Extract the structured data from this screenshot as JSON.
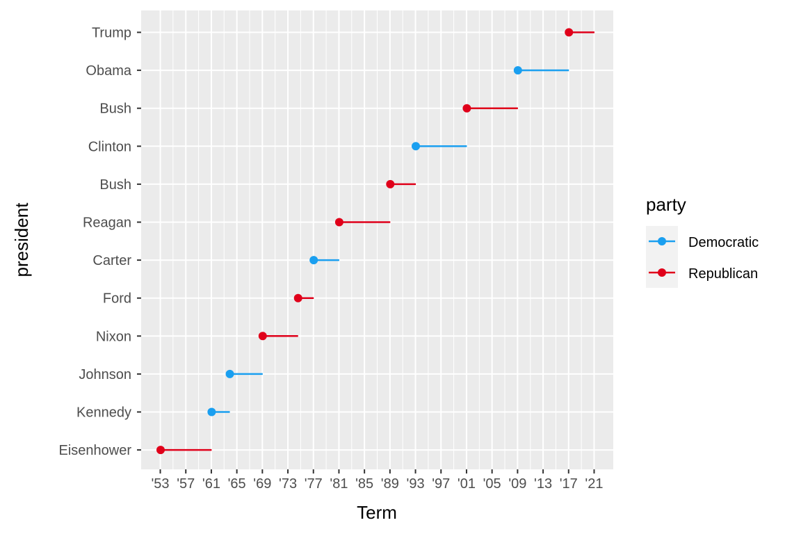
{
  "chart_data": {
    "type": "dumbbell",
    "title": "",
    "xlabel": "Term",
    "ylabel": "president",
    "x_tick_values": [
      1953,
      1957,
      1961,
      1965,
      1969,
      1973,
      1977,
      1981,
      1985,
      1989,
      1993,
      1997,
      2001,
      2005,
      2009,
      2013,
      2017,
      2021
    ],
    "x_tick_labels": [
      "'53",
      "'57",
      "'61",
      "'65",
      "'69",
      "'73",
      "'77",
      "'81",
      "'85",
      "'89",
      "'93",
      "'97",
      "'01",
      "'05",
      "'09",
      "'13",
      "'17",
      "'21"
    ],
    "presidents": [
      {
        "name": "Eisenhower",
        "start": 1953.05,
        "end": 1961.05,
        "party": "Republican"
      },
      {
        "name": "Kennedy",
        "start": 1961.05,
        "end": 1963.9,
        "party": "Democratic"
      },
      {
        "name": "Johnson",
        "start": 1963.9,
        "end": 1969.05,
        "party": "Democratic"
      },
      {
        "name": "Nixon",
        "start": 1969.05,
        "end": 1974.6,
        "party": "Republican"
      },
      {
        "name": "Ford",
        "start": 1974.6,
        "end": 1977.05,
        "party": "Republican"
      },
      {
        "name": "Carter",
        "start": 1977.05,
        "end": 1981.05,
        "party": "Democratic"
      },
      {
        "name": "Reagan",
        "start": 1981.05,
        "end": 1989.05,
        "party": "Republican"
      },
      {
        "name": "Bush",
        "start": 1989.05,
        "end": 1993.05,
        "party": "Republican"
      },
      {
        "name": "Clinton",
        "start": 1993.05,
        "end": 2001.05,
        "party": "Democratic"
      },
      {
        "name": "Bush",
        "start": 2001.05,
        "end": 2009.05,
        "party": "Republican"
      },
      {
        "name": "Obama",
        "start": 2009.05,
        "end": 2017.05,
        "party": "Democratic"
      },
      {
        "name": "Trump",
        "start": 2017.05,
        "end": 2021.05,
        "party": "Republican"
      }
    ],
    "legend": {
      "title": "party",
      "position": "right",
      "entries": [
        {
          "label": "Democratic",
          "color": "#1a9ff0"
        },
        {
          "label": "Republican",
          "color": "#e0001a"
        }
      ]
    },
    "xlim": [
      1950,
      2024
    ],
    "grid": true,
    "panel_background": "#ebebeb"
  }
}
